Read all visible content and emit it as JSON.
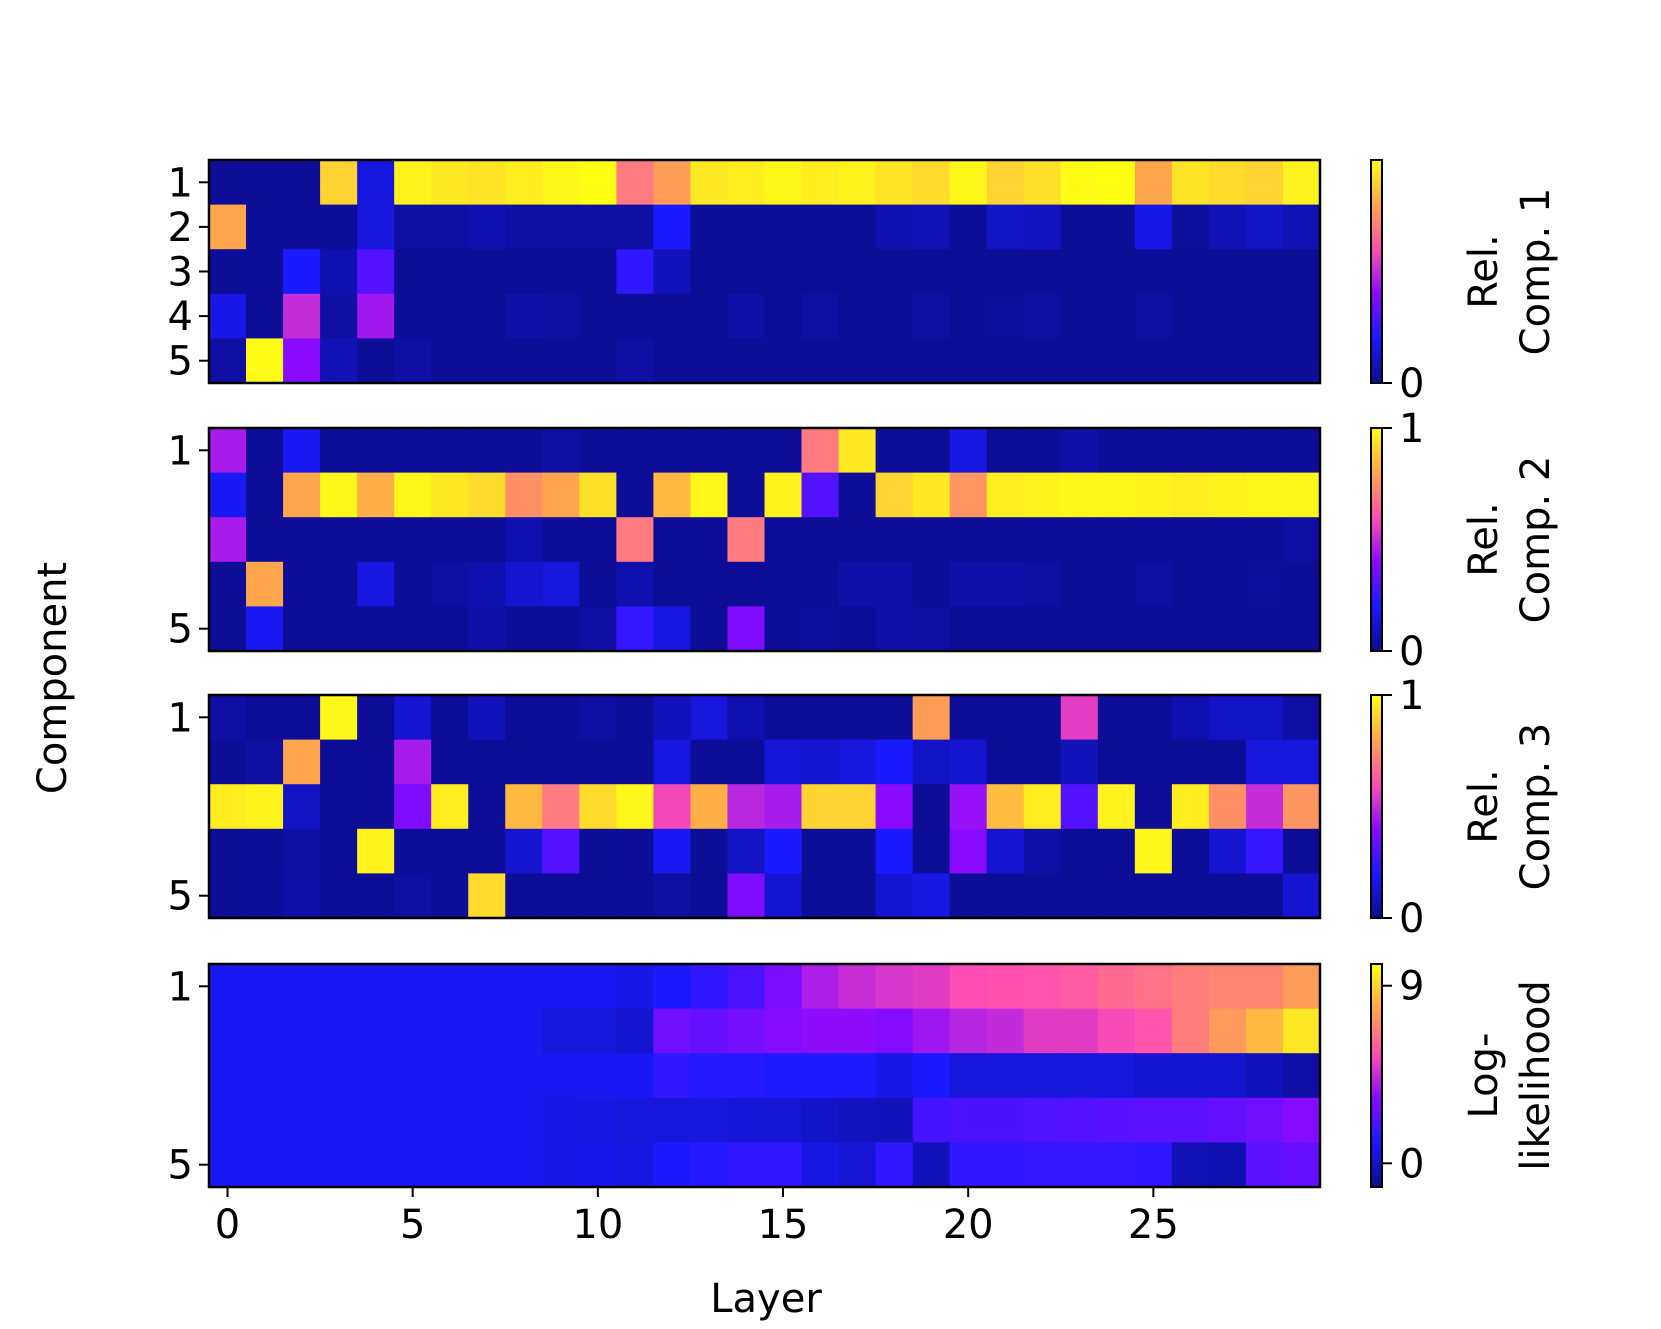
{
  "chart_data": {
    "type": "heatmap",
    "xlabel": "Layer",
    "ylabel": "Component",
    "x_ticks": [
      "0",
      "5",
      "10",
      "15",
      "20",
      "25"
    ],
    "x_tick_values": [
      0,
      5,
      10,
      15,
      20,
      25
    ],
    "n_layers": 30,
    "colormap": [
      "#0c0c8c",
      "#1a1aff",
      "#8a0aff",
      "#ff4fb0",
      "#ffa64d",
      "#ffff14"
    ],
    "panels": [
      {
        "name": "Rel. Comp. 1",
        "colorbar_label": [
          "Rel.",
          "Comp. 1"
        ],
        "colorbar_ticks": [
          "0"
        ],
        "colorbar_tick_values": [
          0
        ],
        "range": [
          0,
          1
        ],
        "y_ticks": [
          "1",
          "2",
          "3",
          "4",
          "5"
        ],
        "y_tick_rows": [
          1,
          2,
          3,
          4,
          5
        ],
        "rows": [
          [
            0.02,
            0.02,
            0.02,
            0.9,
            0.15,
            0.97,
            0.95,
            0.94,
            0.96,
            0.98,
            1.0,
            0.7,
            0.78,
            0.95,
            0.96,
            0.98,
            0.96,
            0.97,
            0.94,
            0.92,
            0.98,
            0.9,
            0.93,
            0.99,
            1.0,
            0.8,
            0.94,
            0.92,
            0.9,
            0.97
          ],
          [
            0.8,
            0.02,
            0.02,
            0.02,
            0.14,
            0.04,
            0.04,
            0.06,
            0.04,
            0.04,
            0.04,
            0.04,
            0.2,
            0.02,
            0.02,
            0.02,
            0.02,
            0.02,
            0.06,
            0.07,
            0.02,
            0.1,
            0.09,
            0.02,
            0.02,
            0.16,
            0.03,
            0.07,
            0.1,
            0.07
          ],
          [
            0.02,
            0.02,
            0.2,
            0.06,
            0.3,
            0.02,
            0.02,
            0.02,
            0.02,
            0.02,
            0.02,
            0.24,
            0.08,
            0.02,
            0.02,
            0.02,
            0.02,
            0.02,
            0.02,
            0.02,
            0.02,
            0.02,
            0.02,
            0.02,
            0.02,
            0.02,
            0.02,
            0.02,
            0.02,
            0.02
          ],
          [
            0.16,
            0.02,
            0.5,
            0.04,
            0.44,
            0.02,
            0.02,
            0.02,
            0.05,
            0.04,
            0.02,
            0.02,
            0.02,
            0.02,
            0.05,
            0.02,
            0.04,
            0.02,
            0.02,
            0.04,
            0.02,
            0.03,
            0.04,
            0.02,
            0.02,
            0.04,
            0.02,
            0.02,
            0.02,
            0.02
          ],
          [
            0.04,
            0.99,
            0.4,
            0.07,
            0.02,
            0.04,
            0.02,
            0.02,
            0.02,
            0.02,
            0.02,
            0.04,
            0.02,
            0.02,
            0.02,
            0.02,
            0.02,
            0.02,
            0.02,
            0.02,
            0.02,
            0.02,
            0.02,
            0.02,
            0.02,
            0.02,
            0.02,
            0.02,
            0.02,
            0.02
          ]
        ]
      },
      {
        "name": "Rel. Comp. 2",
        "colorbar_label": [
          "Rel.",
          "Comp. 2"
        ],
        "colorbar_ticks": [
          "0",
          "1"
        ],
        "colorbar_tick_values": [
          0,
          1
        ],
        "range": [
          0,
          1
        ],
        "y_ticks": [
          "1",
          "5"
        ],
        "y_tick_rows": [
          1,
          5
        ],
        "rows": [
          [
            0.45,
            0.02,
            0.18,
            0.02,
            0.02,
            0.02,
            0.02,
            0.02,
            0.02,
            0.04,
            0.02,
            0.02,
            0.02,
            0.02,
            0.02,
            0.02,
            0.7,
            0.95,
            0.02,
            0.02,
            0.15,
            0.02,
            0.02,
            0.05,
            0.02,
            0.02,
            0.02,
            0.02,
            0.02,
            0.02
          ],
          [
            0.18,
            0.02,
            0.8,
            0.98,
            0.82,
            0.98,
            0.95,
            0.92,
            0.75,
            0.8,
            0.93,
            0.02,
            0.84,
            0.98,
            0.02,
            0.97,
            0.3,
            0.02,
            0.9,
            0.95,
            0.76,
            0.96,
            0.97,
            0.98,
            0.98,
            0.97,
            0.96,
            0.97,
            0.98,
            0.98
          ],
          [
            0.45,
            0.02,
            0.02,
            0.02,
            0.02,
            0.02,
            0.02,
            0.02,
            0.06,
            0.02,
            0.02,
            0.7,
            0.02,
            0.02,
            0.7,
            0.02,
            0.02,
            0.02,
            0.02,
            0.02,
            0.02,
            0.02,
            0.02,
            0.02,
            0.02,
            0.02,
            0.02,
            0.02,
            0.02,
            0.04
          ],
          [
            0.02,
            0.8,
            0.02,
            0.02,
            0.15,
            0.02,
            0.04,
            0.06,
            0.12,
            0.14,
            0.02,
            0.06,
            0.02,
            0.02,
            0.02,
            0.02,
            0.02,
            0.05,
            0.05,
            0.02,
            0.05,
            0.05,
            0.04,
            0.02,
            0.02,
            0.04,
            0.02,
            0.02,
            0.03,
            0.02
          ],
          [
            0.02,
            0.18,
            0.02,
            0.02,
            0.02,
            0.02,
            0.02,
            0.05,
            0.02,
            0.02,
            0.04,
            0.25,
            0.15,
            0.02,
            0.38,
            0.02,
            0.03,
            0.02,
            0.05,
            0.04,
            0.02,
            0.02,
            0.02,
            0.02,
            0.02,
            0.02,
            0.02,
            0.02,
            0.02,
            0.02
          ]
        ]
      },
      {
        "name": "Rel. Comp. 3",
        "colorbar_label": [
          "Rel.",
          "Comp. 3"
        ],
        "colorbar_ticks": [
          "0",
          "1"
        ],
        "colorbar_tick_values": [
          0,
          1
        ],
        "range": [
          0,
          1
        ],
        "y_ticks": [
          "1",
          "5"
        ],
        "y_tick_rows": [
          1,
          5
        ],
        "rows": [
          [
            0.04,
            0.02,
            0.02,
            0.98,
            0.02,
            0.12,
            0.02,
            0.08,
            0.02,
            0.02,
            0.04,
            0.02,
            0.08,
            0.14,
            0.06,
            0.02,
            0.02,
            0.02,
            0.02,
            0.78,
            0.02,
            0.02,
            0.02,
            0.55,
            0.02,
            0.02,
            0.06,
            0.1,
            0.1,
            0.04
          ],
          [
            0.02,
            0.04,
            0.8,
            0.02,
            0.02,
            0.45,
            0.02,
            0.02,
            0.02,
            0.02,
            0.02,
            0.02,
            0.15,
            0.02,
            0.02,
            0.13,
            0.12,
            0.14,
            0.2,
            0.1,
            0.12,
            0.02,
            0.02,
            0.08,
            0.02,
            0.02,
            0.02,
            0.02,
            0.14,
            0.14
          ],
          [
            0.96,
            0.97,
            0.1,
            0.02,
            0.02,
            0.38,
            0.96,
            0.02,
            0.84,
            0.7,
            0.92,
            0.98,
            0.58,
            0.82,
            0.48,
            0.45,
            0.9,
            0.9,
            0.4,
            0.02,
            0.42,
            0.85,
            0.96,
            0.3,
            0.97,
            0.02,
            0.96,
            0.75,
            0.5,
            0.76
          ],
          [
            0.02,
            0.02,
            0.04,
            0.02,
            0.97,
            0.02,
            0.02,
            0.02,
            0.12,
            0.3,
            0.02,
            0.02,
            0.18,
            0.02,
            0.1,
            0.2,
            0.02,
            0.02,
            0.2,
            0.02,
            0.4,
            0.12,
            0.05,
            0.02,
            0.02,
            0.98,
            0.02,
            0.12,
            0.25,
            0.02
          ],
          [
            0.02,
            0.02,
            0.05,
            0.02,
            0.02,
            0.04,
            0.02,
            0.92,
            0.02,
            0.02,
            0.02,
            0.02,
            0.04,
            0.02,
            0.38,
            0.12,
            0.02,
            0.02,
            0.12,
            0.15,
            0.02,
            0.02,
            0.02,
            0.02,
            0.02,
            0.02,
            0.02,
            0.02,
            0.02,
            0.12
          ]
        ]
      },
      {
        "name": "Log-likelihood",
        "colorbar_label": [
          "Log-",
          "likelihood"
        ],
        "colorbar_ticks": [
          "0",
          "9"
        ],
        "colorbar_tick_values": [
          0,
          9
        ],
        "range": [
          -1.2,
          10.1
        ],
        "y_ticks": [
          "1",
          "5"
        ],
        "y_tick_rows": [
          1,
          5
        ],
        "rows": [
          [
            0.8,
            0.8,
            0.8,
            0.8,
            0.8,
            0.8,
            0.8,
            0.8,
            0.8,
            0.8,
            0.8,
            0.6,
            1.0,
            1.5,
            2.0,
            3.0,
            4.0,
            4.5,
            4.8,
            5.0,
            5.5,
            5.6,
            5.7,
            5.9,
            6.3,
            6.5,
            6.8,
            7.0,
            7.0,
            7.6
          ],
          [
            0.8,
            0.8,
            0.8,
            0.8,
            0.8,
            0.8,
            0.8,
            0.8,
            0.8,
            0.4,
            0.4,
            0.1,
            2.8,
            2.6,
            2.9,
            3.2,
            3.4,
            3.4,
            3.2,
            3.7,
            4.2,
            4.4,
            5.0,
            5.0,
            5.4,
            5.7,
            6.8,
            7.5,
            8.3,
            9.5
          ],
          [
            0.8,
            0.8,
            0.8,
            0.8,
            0.8,
            0.8,
            0.8,
            0.8,
            0.8,
            0.8,
            0.8,
            0.8,
            1.5,
            1.3,
            1.3,
            1.1,
            1.1,
            1.1,
            0.6,
            1.0,
            0.4,
            0.4,
            0.4,
            0.4,
            0.4,
            0.1,
            0.1,
            0.1,
            -0.3,
            -0.7
          ],
          [
            0.8,
            0.8,
            0.8,
            0.8,
            0.8,
            0.8,
            0.8,
            0.8,
            0.8,
            0.6,
            0.5,
            0.4,
            0.4,
            0.4,
            0.3,
            0.2,
            0.0,
            -0.2,
            -0.3,
            1.9,
            2.0,
            2.0,
            2.1,
            2.2,
            2.3,
            2.4,
            2.4,
            2.6,
            2.8,
            3.2
          ],
          [
            0.8,
            0.8,
            0.8,
            0.8,
            0.8,
            0.8,
            0.8,
            0.8,
            0.8,
            0.6,
            0.7,
            0.5,
            1.0,
            1.3,
            1.5,
            1.5,
            0.5,
            0.2,
            1.5,
            -0.3,
            1.5,
            1.5,
            1.6,
            1.6,
            1.6,
            1.5,
            -0.4,
            -0.5,
            2.4,
            2.6
          ]
        ]
      }
    ]
  }
}
